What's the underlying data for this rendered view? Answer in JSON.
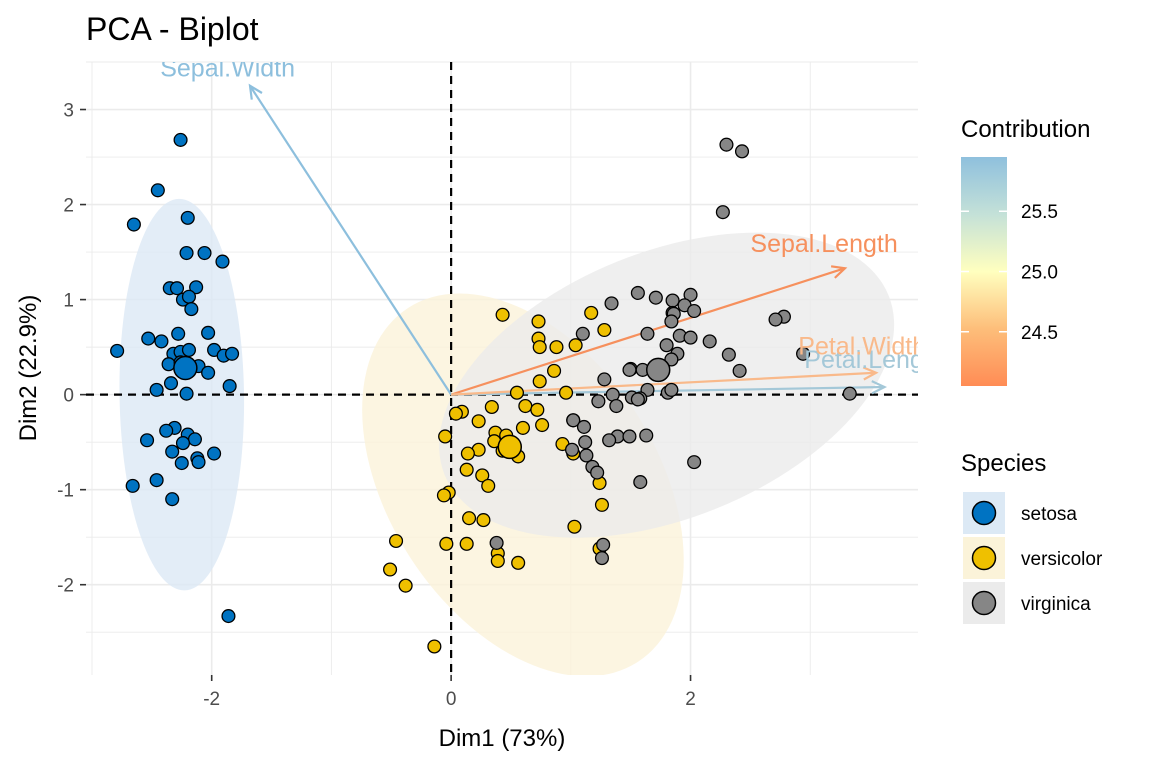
{
  "chart_data": {
    "type": "scatter",
    "title": "PCA - Biplot",
    "xlabel": "Dim1 (73%)",
    "ylabel": "Dim2 (22.9%)",
    "xlim": [
      -3.05,
      3.9
    ],
    "ylim": [
      -2.95,
      3.5
    ],
    "x_ticks": [
      -2,
      0,
      2
    ],
    "x_tick_labels": [
      "-2",
      "0",
      "2"
    ],
    "y_ticks": [
      -2,
      -1,
      0,
      1,
      2,
      3
    ],
    "y_tick_labels": [
      "-2",
      "-1",
      "0",
      "1",
      "2",
      "3"
    ],
    "grid": true,
    "reference_lines": {
      "x": 0,
      "y": 0,
      "style": "dashed"
    },
    "series": [
      {
        "name": "setosa",
        "color": "#0073C2",
        "centroid": [
          -2.22,
          0.28
        ],
        "ellipse": {
          "center": [
            -2.25,
            0.0
          ],
          "rx": 0.52,
          "ry": 2.06,
          "angle": 0.8
        },
        "points": [
          [
            -2.26,
            2.68
          ],
          [
            -2.45,
            2.15
          ],
          [
            -2.65,
            1.79
          ],
          [
            -2.2,
            1.86
          ],
          [
            -2.21,
            1.49
          ],
          [
            -2.06,
            1.49
          ],
          [
            -1.91,
            1.4
          ],
          [
            -2.35,
            1.12
          ],
          [
            -2.29,
            1.12
          ],
          [
            -2.13,
            1.13
          ],
          [
            -2.24,
            1.0
          ],
          [
            -2.19,
            1.03
          ],
          [
            -2.17,
            0.9
          ],
          [
            -2.03,
            0.65
          ],
          [
            -2.28,
            0.64
          ],
          [
            -2.53,
            0.59
          ],
          [
            -2.42,
            0.56
          ],
          [
            -2.79,
            0.46
          ],
          [
            -2.32,
            0.43
          ],
          [
            -2.26,
            0.45
          ],
          [
            -2.19,
            0.47
          ],
          [
            -1.98,
            0.47
          ],
          [
            -1.9,
            0.41
          ],
          [
            -1.83,
            0.43
          ],
          [
            -2.36,
            0.32
          ],
          [
            -2.26,
            0.34
          ],
          [
            -2.11,
            0.3
          ],
          [
            -2.03,
            0.23
          ],
          [
            -2.34,
            0.12
          ],
          [
            -2.46,
            0.05
          ],
          [
            -2.21,
            0.01
          ],
          [
            -1.85,
            0.09
          ],
          [
            -2.31,
            -0.35
          ],
          [
            -2.38,
            -0.38
          ],
          [
            -2.2,
            -0.42
          ],
          [
            -2.14,
            -0.47
          ],
          [
            -2.54,
            -0.48
          ],
          [
            -2.24,
            -0.51
          ],
          [
            -2.33,
            -0.6
          ],
          [
            -1.98,
            -0.62
          ],
          [
            -2.12,
            -0.67
          ],
          [
            -2.11,
            -0.71
          ],
          [
            -2.25,
            -0.72
          ],
          [
            -2.46,
            -0.9
          ],
          [
            -2.66,
            -0.96
          ],
          [
            -2.33,
            -1.1
          ],
          [
            -1.86,
            -2.33
          ]
        ]
      },
      {
        "name": "versicolor",
        "color": "#EFC000",
        "centroid": [
          0.49,
          -0.55
        ],
        "ellipse": {
          "center": [
            0.6,
            -0.95
          ],
          "rx": 1.12,
          "ry": 2.22,
          "angle": 33
        },
        "points": [
          [
            0.43,
            0.84
          ],
          [
            0.73,
            0.77
          ],
          [
            1.28,
            0.68
          ],
          [
            0.73,
            0.59
          ],
          [
            0.74,
            0.5
          ],
          [
            1.04,
            0.52
          ],
          [
            0.88,
            0.5
          ],
          [
            1.17,
            0.86
          ],
          [
            0.86,
            0.25
          ],
          [
            0.74,
            0.14
          ],
          [
            0.96,
            0.02
          ],
          [
            0.55,
            0.02
          ],
          [
            0.62,
            -0.12
          ],
          [
            0.34,
            -0.13
          ],
          [
            0.09,
            -0.18
          ],
          [
            0.04,
            -0.2
          ],
          [
            0.23,
            -0.28
          ],
          [
            0.72,
            -0.16
          ],
          [
            0.76,
            -0.32
          ],
          [
            0.37,
            -0.4
          ],
          [
            0.6,
            -0.35
          ],
          [
            0.46,
            -0.43
          ],
          [
            1.02,
            -0.27
          ],
          [
            0.36,
            -0.49
          ],
          [
            -0.05,
            -0.44
          ],
          [
            0.23,
            -0.58
          ],
          [
            0.14,
            -0.62
          ],
          [
            0.43,
            -0.59
          ],
          [
            0.93,
            -0.52
          ],
          [
            0.56,
            -0.65
          ],
          [
            0.13,
            -0.79
          ],
          [
            0.26,
            -0.85
          ],
          [
            1.02,
            -0.62
          ],
          [
            0.31,
            -0.96
          ],
          [
            -0.02,
            -1.03
          ],
          [
            -0.06,
            -1.06
          ],
          [
            0.15,
            -1.3
          ],
          [
            0.27,
            -1.32
          ],
          [
            1.24,
            -0.93
          ],
          [
            1.03,
            -1.39
          ],
          [
            -0.04,
            -1.57
          ],
          [
            0.13,
            -1.57
          ],
          [
            -0.46,
            -1.54
          ],
          [
            0.39,
            -1.67
          ],
          [
            0.56,
            -1.77
          ],
          [
            0.39,
            -1.75
          ],
          [
            1.24,
            -1.62
          ],
          [
            -0.51,
            -1.84
          ],
          [
            -0.38,
            -2.01
          ],
          [
            -0.14,
            -2.65
          ],
          [
            1.26,
            -1.16
          ]
        ]
      },
      {
        "name": "virginica",
        "color": "#868686",
        "centroid": [
          1.73,
          0.26
        ],
        "ellipse": {
          "center": [
            1.8,
            0.1
          ],
          "rx": 2.0,
          "ry": 1.4,
          "angle": 22
        },
        "points": [
          [
            2.3,
            2.63
          ],
          [
            2.43,
            2.56
          ],
          [
            2.27,
            1.92
          ],
          [
            1.56,
            1.07
          ],
          [
            1.71,
            1.02
          ],
          [
            1.85,
            0.99
          ],
          [
            2.0,
            1.05
          ],
          [
            1.95,
            0.94
          ],
          [
            1.34,
            0.96
          ],
          [
            2.03,
            0.88
          ],
          [
            1.85,
            0.86
          ],
          [
            1.86,
            0.85
          ],
          [
            2.78,
            0.82
          ],
          [
            2.71,
            0.79
          ],
          [
            1.84,
            0.77
          ],
          [
            1.64,
            0.64
          ],
          [
            1.91,
            0.62
          ],
          [
            2.0,
            0.6
          ],
          [
            2.16,
            0.56
          ],
          [
            1.8,
            0.52
          ],
          [
            1.89,
            0.43
          ],
          [
            2.32,
            0.42
          ],
          [
            1.1,
            0.64
          ],
          [
            2.94,
            0.43
          ],
          [
            1.84,
            0.37
          ],
          [
            1.5,
            0.27
          ],
          [
            1.49,
            0.26
          ],
          [
            1.6,
            0.26
          ],
          [
            2.41,
            0.25
          ],
          [
            1.28,
            0.16
          ],
          [
            1.64,
            0.05
          ],
          [
            1.81,
            0.02
          ],
          [
            1.84,
            0.05
          ],
          [
            1.58,
            -0.04
          ],
          [
            1.51,
            -0.03
          ],
          [
            3.33,
            0.01
          ],
          [
            1.35,
            0.0
          ],
          [
            1.02,
            -0.27
          ],
          [
            1.56,
            -0.05
          ],
          [
            1.23,
            -0.07
          ],
          [
            1.39,
            -0.44
          ],
          [
            1.49,
            -0.44
          ],
          [
            1.63,
            -0.43
          ],
          [
            1.32,
            -0.48
          ],
          [
            1.12,
            -0.5
          ],
          [
            1.01,
            -0.58
          ],
          [
            1.13,
            -0.64
          ],
          [
            1.18,
            -0.76
          ],
          [
            1.22,
            -0.82
          ],
          [
            1.58,
            -0.92
          ],
          [
            1.11,
            -0.34
          ],
          [
            1.27,
            -1.58
          ],
          [
            2.03,
            -0.71
          ],
          [
            0.38,
            -1.56
          ],
          [
            1.26,
            -1.72
          ],
          [
            1.38,
            -0.12
          ]
        ]
      }
    ],
    "variables": [
      {
        "name": "Sepal.Length",
        "x": 3.29,
        "y": 1.33,
        "contribution": 24.2,
        "color": "#F6905D",
        "label_at": [
          2.5,
          1.5
        ]
      },
      {
        "name": "Sepal.Width",
        "x": -1.68,
        "y": 3.25,
        "contribution": 26.0,
        "color": "#8DBFDD",
        "label_at": [
          -2.43,
          3.35
        ]
      },
      {
        "name": "Petal.Length",
        "x": 3.62,
        "y": 0.08,
        "contribution": 25.6,
        "color": "#A4C8D8",
        "label_at": [
          2.95,
          0.28
        ]
      },
      {
        "name": "Petal.Width",
        "x": 3.55,
        "y": 0.23,
        "contribution": 24.6,
        "color": "#F9B98A",
        "label_at": [
          2.9,
          0.42
        ]
      }
    ],
    "legend": {
      "placement": "right",
      "contribution": {
        "title": "Contribution",
        "range": [
          24.05,
          25.95
        ],
        "ticks": [
          24.5,
          25.0,
          25.5
        ],
        "tick_labels": [
          "24.5",
          "25.0",
          "25.5"
        ],
        "colors": [
          "#FF8C55",
          "#FDBE7A",
          "#FFFFBF",
          "#C4E1D8",
          "#8FC0DD"
        ]
      },
      "species": {
        "title": "Species",
        "items": [
          {
            "label": "setosa",
            "color": "#0073C2",
            "fill": "#DCE9F5"
          },
          {
            "label": "versicolor",
            "color": "#EFC000",
            "fill": "#FBF3D9"
          },
          {
            "label": "virginica",
            "color": "#868686",
            "fill": "#EBEBEB"
          }
        ]
      }
    }
  }
}
